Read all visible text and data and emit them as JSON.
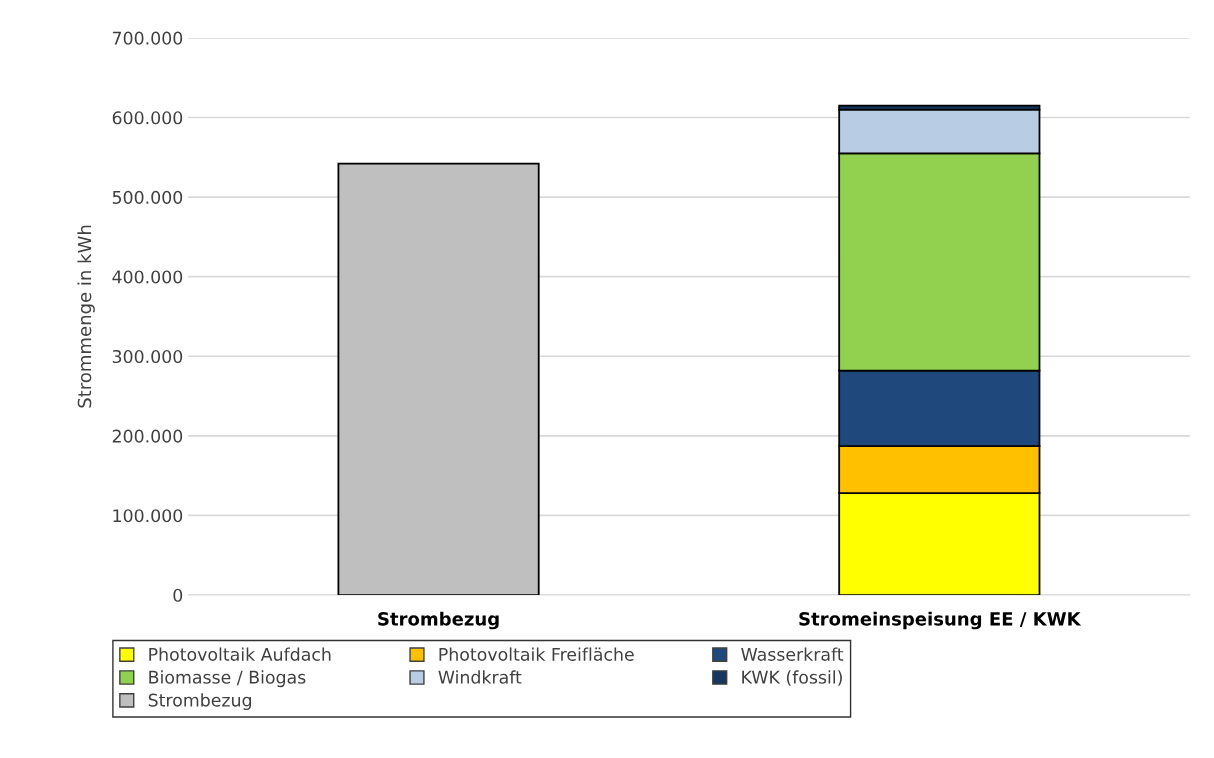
{
  "chart_data": {
    "type": "bar",
    "stacked": true,
    "ylabel": "Strommenge in kWh",
    "categories": [
      "Strombezug",
      "Stromeinspeisung EE / KWK"
    ],
    "series": [
      {
        "name": "Photovoltaik Aufdach",
        "color": "#ffff00",
        "values": [
          null,
          128000
        ]
      },
      {
        "name": "Photovoltaik Freifläche",
        "color": "#ffc000",
        "values": [
          null,
          59000
        ]
      },
      {
        "name": "Wasserkraft",
        "color": "#1f497d",
        "values": [
          null,
          95000
        ]
      },
      {
        "name": "Biomasse / Biogas",
        "color": "#92d050",
        "values": [
          null,
          273000
        ]
      },
      {
        "name": "Windkraft",
        "color": "#b8cce4",
        "values": [
          null,
          55000
        ]
      },
      {
        "name": "KWK (fossil)",
        "color": "#17375e",
        "values": [
          null,
          5000
        ]
      },
      {
        "name": "Strombezug",
        "color": "#bfbfbf",
        "values": [
          542000,
          null
        ]
      }
    ],
    "ylim": [
      0,
      700000
    ],
    "yticks": [
      0,
      {
        "value": 100000,
        "label": "100.000"
      },
      {
        "value": 200000,
        "label": "200.000"
      },
      {
        "value": 300000,
        "label": "300.000"
      },
      {
        "value": 400000,
        "label": "400.000"
      },
      {
        "value": 500000,
        "label": "500.000"
      },
      {
        "value": 600000,
        "label": "600.000"
      },
      {
        "value": 700000,
        "label": "700.000"
      }
    ],
    "grid": "y",
    "legend": "bottom"
  }
}
